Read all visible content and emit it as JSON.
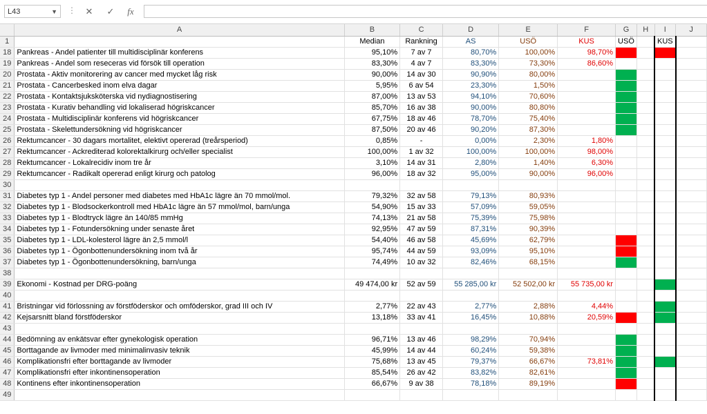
{
  "formula_bar": {
    "name_box": "L43",
    "formula": "",
    "cancel_icon": "✕",
    "enter_icon": "✓",
    "fx_label": "fx"
  },
  "columns": [
    "A",
    "B",
    "C",
    "D",
    "E",
    "F",
    "G",
    "H",
    "I",
    "J"
  ],
  "colors": {
    "red_fill": "#ff0000",
    "green_fill": "#00b050",
    "as_text": "#1f4e79",
    "uso_text": "#843c0c",
    "kus_text": "#e00000"
  },
  "rows": [
    {
      "n": "1",
      "a": "",
      "b": "Median",
      "c": "Rankning",
      "d": "AS",
      "e": "USÖ",
      "f": "KUS",
      "g": "USÖ",
      "h": "",
      "i": "KUS",
      "gfill": "",
      "ifill": "",
      "header": true
    },
    {
      "n": "18",
      "a": "Pankreas - Andel patienter till multidisciplinär konferens",
      "b": "95,10%",
      "c": "7 av 7",
      "d": "80,70%",
      "e": "100,00%",
      "f": "98,70%",
      "g": "",
      "h": "",
      "i": "",
      "gfill": "red",
      "ifill": "red"
    },
    {
      "n": "19",
      "a": "Pankreas - Andel som reseceras vid försök till operation",
      "b": "83,30%",
      "c": "4 av 7",
      "d": "83,30%",
      "e": "73,30%",
      "f": "86,60%",
      "g": "",
      "h": "",
      "i": "",
      "gfill": "",
      "ifill": ""
    },
    {
      "n": "20",
      "a": "Prostata - Aktiv monitorering av cancer med mycket låg risk",
      "b": "90,00%",
      "c": "14 av 30",
      "d": "90,90%",
      "e": "80,00%",
      "f": "",
      "g": "",
      "h": "",
      "i": "",
      "gfill": "green",
      "ifill": ""
    },
    {
      "n": "21",
      "a": "Prostata - Cancerbesked inom elva dagar",
      "b": "5,95%",
      "c": "6 av 54",
      "d": "23,30%",
      "e": "1,50%",
      "f": "",
      "g": "",
      "h": "",
      "i": "",
      "gfill": "green",
      "ifill": ""
    },
    {
      "n": "22",
      "a": "Prostata - Kontaktsjuksköterska vid nydiagnostisering",
      "b": "87,00%",
      "c": "13 av 53",
      "d": "94,10%",
      "e": "70,60%",
      "f": "",
      "g": "",
      "h": "",
      "i": "",
      "gfill": "green",
      "ifill": ""
    },
    {
      "n": "23",
      "a": "Prostata - Kurativ behandling vid lokaliserad högriskcancer",
      "b": "85,70%",
      "c": "16 av 38",
      "d": "90,00%",
      "e": "80,80%",
      "f": "",
      "g": "",
      "h": "",
      "i": "",
      "gfill": "green",
      "ifill": ""
    },
    {
      "n": "24",
      "a": "Prostata - Multidisciplinär konferens vid högriskcancer",
      "b": "67,75%",
      "c": "18 av 46",
      "d": "78,70%",
      "e": "75,40%",
      "f": "",
      "g": "",
      "h": "",
      "i": "",
      "gfill": "green",
      "ifill": ""
    },
    {
      "n": "25",
      "a": "Prostata - Skelettundersökning vid högriskcancer",
      "b": "87,50%",
      "c": "20 av 46",
      "d": "90,20%",
      "e": "87,30%",
      "f": "",
      "g": "",
      "h": "",
      "i": "",
      "gfill": "green",
      "ifill": ""
    },
    {
      "n": "26",
      "a": "Rektumcancer - 30 dagars mortalitet, elektivt opererad (treårsperiod)",
      "b": "0,85%",
      "c": "-",
      "d": "0,00%",
      "e": "2,30%",
      "f": "1,80%",
      "g": "",
      "h": "",
      "i": "",
      "gfill": "",
      "ifill": ""
    },
    {
      "n": "27",
      "a": "Rektumcancer - Ackrediterad kolorektalkirurg och/eller specialist",
      "b": "100,00%",
      "c": "1 av 32",
      "d": "100,00%",
      "e": "100,00%",
      "f": "98,00%",
      "g": "",
      "h": "",
      "i": "",
      "gfill": "",
      "ifill": ""
    },
    {
      "n": "28",
      "a": "Rektumcancer - Lokalrecidiv inom tre år",
      "b": "3,10%",
      "c": "14 av 31",
      "d": "2,80%",
      "e": "1,40%",
      "f": "6,30%",
      "g": "",
      "h": "",
      "i": "",
      "gfill": "",
      "ifill": ""
    },
    {
      "n": "29",
      "a": "Rektumcancer - Radikalt opererad enligt kirurg och patolog",
      "b": "96,00%",
      "c": "18 av 32",
      "d": "95,00%",
      "e": "90,00%",
      "f": "96,00%",
      "g": "",
      "h": "",
      "i": "",
      "gfill": "",
      "ifill": ""
    },
    {
      "n": "30",
      "a": "",
      "b": "",
      "c": "",
      "d": "",
      "e": "",
      "f": "",
      "g": "",
      "h": "",
      "i": "",
      "gfill": "",
      "ifill": ""
    },
    {
      "n": "31",
      "a": "Diabetes typ 1 - Andel personer med diabetes med HbA1c lägre än 70 mmol/mol.",
      "b": "79,32%",
      "c": "32 av 58",
      "d": "79,13%",
      "e": "80,93%",
      "f": "",
      "g": "",
      "h": "",
      "i": "",
      "gfill": "",
      "ifill": ""
    },
    {
      "n": "32",
      "a": "Diabetes typ 1 - Blodsockerkontroll med HbA1c lägre än 57 mmol/mol, barn/unga",
      "b": "54,90%",
      "c": "15 av 33",
      "d": "57,09%",
      "e": "59,05%",
      "f": "",
      "g": "",
      "h": "",
      "i": "",
      "gfill": "",
      "ifill": ""
    },
    {
      "n": "33",
      "a": "Diabetes typ 1 - Blodtryck lägre än 140/85 mmHg",
      "b": "74,13%",
      "c": "21 av 58",
      "d": "75,39%",
      "e": "75,98%",
      "f": "",
      "g": "",
      "h": "",
      "i": "",
      "gfill": "",
      "ifill": ""
    },
    {
      "n": "34",
      "a": "Diabetes typ 1 - Fotundersökning under senaste året",
      "b": "92,95%",
      "c": "47 av 59",
      "d": "87,31%",
      "e": "90,39%",
      "f": "",
      "g": "",
      "h": "",
      "i": "",
      "gfill": "",
      "ifill": ""
    },
    {
      "n": "35",
      "a": "Diabetes typ 1 - LDL-kolesterol lägre än 2,5 mmol/l",
      "b": "54,40%",
      "c": "46 av 58",
      "d": "45,69%",
      "e": "62,79%",
      "f": "",
      "g": "",
      "h": "",
      "i": "",
      "gfill": "red",
      "ifill": ""
    },
    {
      "n": "36",
      "a": "Diabetes typ 1 - Ögonbottenundersökning inom två år",
      "b": "95,74%",
      "c": "44 av 59",
      "d": "93,09%",
      "e": "95,10%",
      "f": "",
      "g": "",
      "h": "",
      "i": "",
      "gfill": "red",
      "ifill": ""
    },
    {
      "n": "37",
      "a": "Diabetes typ 1 - Ögonbottenundersökning, barn/unga",
      "b": "74,49%",
      "c": "10 av 32",
      "d": "82,46%",
      "e": "68,15%",
      "f": "",
      "g": "",
      "h": "",
      "i": "",
      "gfill": "green",
      "ifill": ""
    },
    {
      "n": "38",
      "a": "",
      "b": "",
      "c": "",
      "d": "",
      "e": "",
      "f": "",
      "g": "",
      "h": "",
      "i": "",
      "gfill": "",
      "ifill": ""
    },
    {
      "n": "39",
      "a": "Ekonomi - Kostnad per DRG-poäng",
      "b": "49 474,00 kr",
      "c": "52 av 59",
      "d": "55 285,00 kr",
      "e": "52 502,00 kr",
      "f": "55 735,00 kr",
      "g": "",
      "h": "",
      "i": "",
      "gfill": "",
      "ifill": "green"
    },
    {
      "n": "40",
      "a": "",
      "b": "",
      "c": "",
      "d": "",
      "e": "",
      "f": "",
      "g": "",
      "h": "",
      "i": "",
      "gfill": "",
      "ifill": ""
    },
    {
      "n": "41",
      "a": "Bristningar vid förlossning av förstföderskor och omföderskor, grad III och IV",
      "b": "2,77%",
      "c": "22 av 43",
      "d": "2,77%",
      "e": "2,88%",
      "f": "4,44%",
      "g": "",
      "h": "",
      "i": "",
      "gfill": "",
      "ifill": "green"
    },
    {
      "n": "42",
      "a": "Kejsarsnitt bland förstföderskor",
      "b": "13,18%",
      "c": "33 av 41",
      "d": "16,45%",
      "e": "10,88%",
      "f": "20,59%",
      "g": "",
      "h": "",
      "i": "",
      "gfill": "red",
      "ifill": "green"
    },
    {
      "n": "43",
      "a": "",
      "b": "",
      "c": "",
      "d": "",
      "e": "",
      "f": "",
      "g": "",
      "h": "",
      "i": "",
      "gfill": "",
      "ifill": ""
    },
    {
      "n": "44",
      "a": "Bedömning av enkätsvar efter gynekologisk operation",
      "b": "96,71%",
      "c": "13 av 46",
      "d": "98,29%",
      "e": "70,94%",
      "f": "",
      "g": "",
      "h": "",
      "i": "",
      "gfill": "green",
      "ifill": ""
    },
    {
      "n": "45",
      "a": "Borttagande av livmoder med minimalinvasiv teknik",
      "b": "45,99%",
      "c": "14 av 44",
      "d": "60,24%",
      "e": "59,38%",
      "f": "",
      "g": "",
      "h": "",
      "i": "",
      "gfill": "green",
      "ifill": ""
    },
    {
      "n": "46",
      "a": "Komplikationsfri efter borttagande av livmoder",
      "b": "75,68%",
      "c": "13 av 45",
      "d": "79,37%",
      "e": "66,67%",
      "f": "73,81%",
      "g": "",
      "h": "",
      "i": "",
      "gfill": "green",
      "ifill": "green"
    },
    {
      "n": "47",
      "a": "Komplikationsfri efter inkontinensoperation",
      "b": "85,54%",
      "c": "26 av 42",
      "d": "83,82%",
      "e": "82,61%",
      "f": "",
      "g": "",
      "h": "",
      "i": "",
      "gfill": "green",
      "ifill": ""
    },
    {
      "n": "48",
      "a": "Kontinens efter inkontinensoperation",
      "b": "66,67%",
      "c": "9 av 38",
      "d": "78,18%",
      "e": "89,19%",
      "f": "",
      "g": "",
      "h": "",
      "i": "",
      "gfill": "red",
      "ifill": ""
    },
    {
      "n": "49",
      "a": "",
      "b": "",
      "c": "",
      "d": "",
      "e": "",
      "f": "",
      "g": "",
      "h": "",
      "i": "",
      "gfill": "",
      "ifill": ""
    }
  ]
}
